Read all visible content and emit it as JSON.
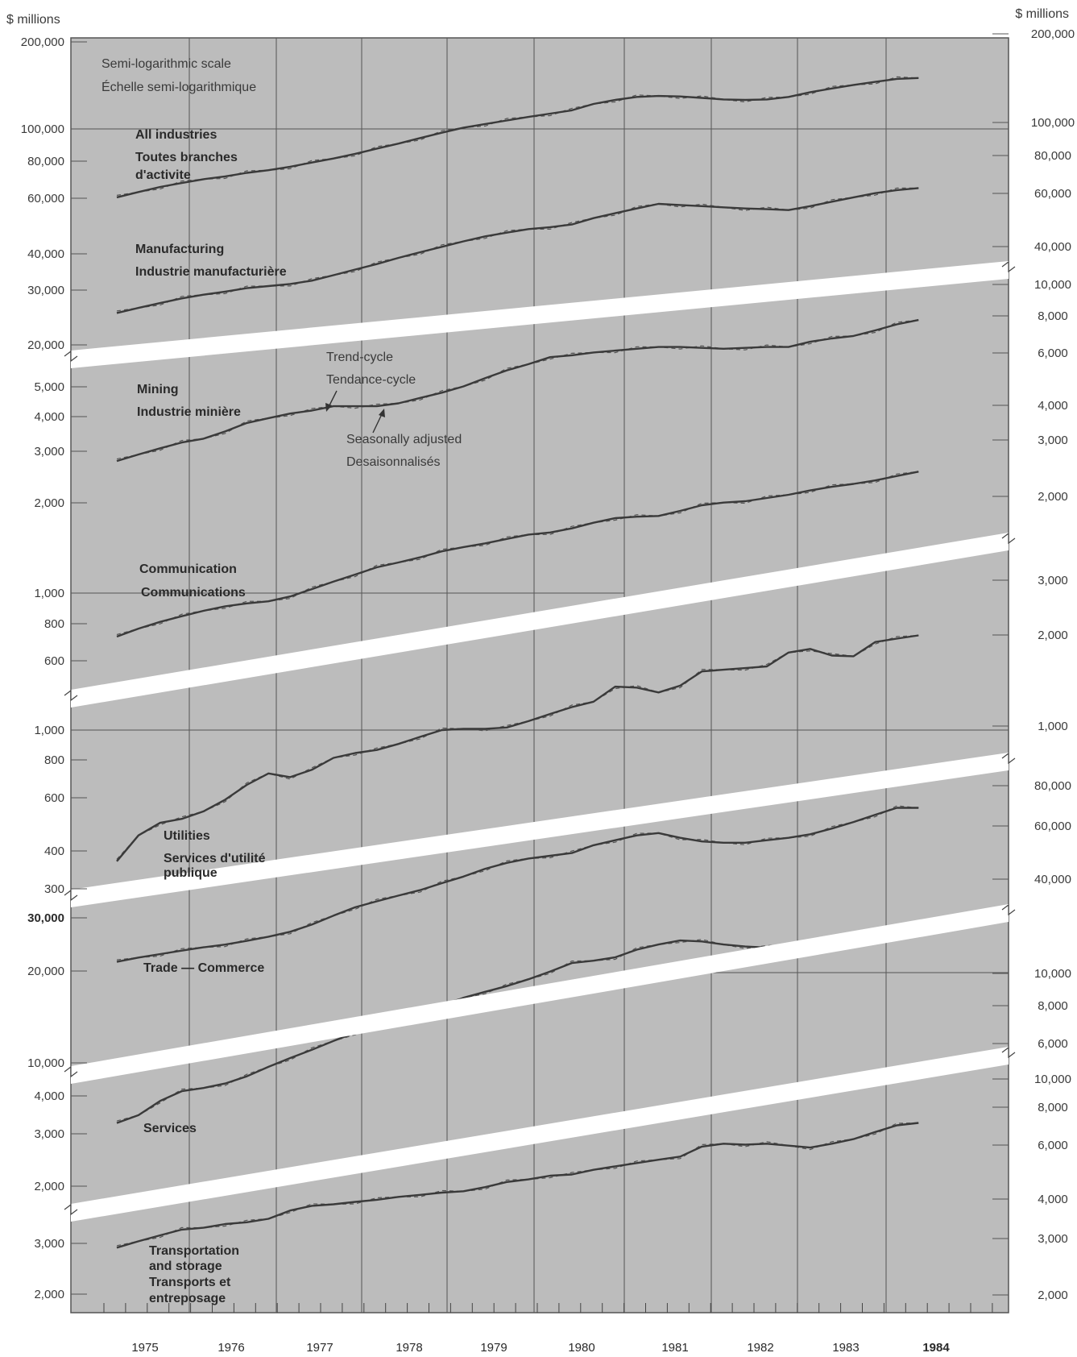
{
  "chart_data": {
    "type": "line",
    "units_left": "$ millions",
    "units_right": "$ millions",
    "scale_note": [
      "Semi-logarithmic scale",
      "Échelle semi-logarithmique"
    ],
    "legend_note": {
      "trend": [
        "Trend-cycle",
        "Tendance-cycle"
      ],
      "seasonal": [
        "Seasonally adjusted",
        "Desaisonnalisés"
      ]
    },
    "x": [
      "1974Q4",
      "1975Q1",
      "1975Q2",
      "1975Q3",
      "1975Q4",
      "1976Q1",
      "1976Q2",
      "1976Q3",
      "1976Q4",
      "1977Q1",
      "1977Q2",
      "1977Q3",
      "1977Q4",
      "1978Q1",
      "1978Q2",
      "1978Q3",
      "1978Q4",
      "1979Q1",
      "1979Q2",
      "1979Q3",
      "1979Q4",
      "1980Q1",
      "1980Q2",
      "1980Q3",
      "1980Q4",
      "1981Q1",
      "1981Q2",
      "1981Q3",
      "1981Q4",
      "1982Q1",
      "1982Q2",
      "1982Q3",
      "1982Q4",
      "1983Q1",
      "1983Q2",
      "1983Q3",
      "1983Q4",
      "1984Q1"
    ],
    "years": [
      "1975",
      "1976",
      "1977",
      "1978",
      "1979",
      "1980",
      "1981",
      "1982",
      "1983",
      "1984"
    ],
    "bold_year": "1984",
    "series": [
      {
        "name": "All industries",
        "name_fr": [
          "Toutes branches",
          "d'activite"
        ],
        "values": [
          58000,
          60500,
          63000,
          65000,
          67000,
          68500,
          70500,
          72000,
          74000,
          76500,
          79000,
          82000,
          85500,
          89000,
          93000,
          97000,
          101000,
          104000,
          107000,
          110000,
          113000,
          116000,
          122000,
          126000,
          129000,
          130000,
          129500,
          128000,
          126500,
          126000,
          126500,
          129000,
          134000,
          138000,
          142000,
          145500,
          149000,
          150000
        ]
      },
      {
        "name": "Manufacturing",
        "name_fr": [
          "Industrie manufacturière"
        ],
        "values": [
          25500,
          26500,
          27500,
          28500,
          29300,
          30000,
          30800,
          31300,
          31800,
          32600,
          34000,
          35500,
          37000,
          38800,
          40500,
          42200,
          44000,
          45700,
          47000,
          48300,
          49000,
          50000,
          52500,
          54500,
          56500,
          58500,
          58000,
          57500,
          57000,
          56500,
          56200,
          55800,
          57500,
          59500,
          61500,
          63500,
          65000,
          66000
        ]
      },
      {
        "name": "Mining",
        "name_fr": [
          "Industrie minière"
        ],
        "values": [
          2800,
          2950,
          3100,
          3250,
          3350,
          3550,
          3800,
          3950,
          4100,
          4200,
          4350,
          4350,
          4350,
          4450,
          4650,
          4850,
          5100,
          5450,
          5800,
          6100,
          6450,
          6550,
          6700,
          6800,
          6900,
          7000,
          7000,
          6950,
          6900,
          6950,
          7000,
          7000,
          7300,
          7500,
          7650,
          8000,
          8400,
          8700
        ]
      },
      {
        "name": "Communication",
        "name_fr": [
          "Communications"
        ],
        "values": [
          720,
          765,
          805,
          840,
          875,
          905,
          925,
          940,
          975,
          1030,
          1090,
          1150,
          1215,
          1260,
          1310,
          1370,
          1415,
          1455,
          1505,
          1555,
          1580,
          1630,
          1700,
          1760,
          1780,
          1790,
          1860,
          1940,
          1980,
          2000,
          2050,
          2100,
          2170,
          2230,
          2280,
          2340,
          2420,
          2500
        ]
      },
      {
        "name": "Utilities",
        "name_fr": [
          "Services d'utilité",
          "publique"
        ],
        "values": [
          370,
          450,
          495,
          510,
          540,
          590,
          660,
          720,
          700,
          740,
          810,
          840,
          860,
          900,
          950,
          1000,
          1010,
          1010,
          1020,
          1070,
          1130,
          1190,
          1240,
          1390,
          1380,
          1330,
          1400,
          1560,
          1580,
          1600,
          1620,
          1800,
          1850,
          1760,
          1750,
          1950,
          2000,
          2050
        ]
      },
      {
        "name": "Trade — Commerce",
        "name_fr": [],
        "values": [
          21500,
          22200,
          22800,
          23400,
          24000,
          24500,
          25200,
          26000,
          27000,
          28500,
          30500,
          32500,
          34000,
          35500,
          37000,
          39000,
          41000,
          43500,
          45500,
          47000,
          48000,
          49000,
          52000,
          54000,
          56000,
          57000,
          55000,
          53500,
          53000,
          53000,
          54000,
          55000,
          56500,
          59000,
          62000,
          65500,
          69000,
          69000
        ]
      },
      {
        "name": "Services",
        "name_fr": [],
        "values": [
          3250,
          3450,
          3850,
          4150,
          4250,
          4400,
          4650,
          5000,
          5350,
          5700,
          6100,
          6500,
          6900,
          7300,
          7600,
          8000,
          8500,
          8900,
          9300,
          9800,
          10400,
          11100,
          11300,
          11600,
          12300,
          12800,
          13200,
          13100,
          12800,
          12600,
          12500,
          12700,
          13000,
          13500,
          13700,
          14000,
          14400,
          14500
        ]
      },
      {
        "name": "Transportation and storage",
        "name_fr": [
          "Transports et",
          "entreposage"
        ],
        "values": [
          2900,
          3050,
          3200,
          3350,
          3400,
          3500,
          3550,
          3650,
          3900,
          4050,
          4100,
          4180,
          4250,
          4350,
          4420,
          4500,
          4550,
          4700,
          4900,
          5000,
          5150,
          5200,
          5400,
          5550,
          5700,
          5850,
          6000,
          6500,
          6650,
          6600,
          6650,
          6550,
          6450,
          6650,
          6900,
          7300,
          7700,
          7850
        ]
      }
    ],
    "left_axis": [
      [
        "200,000",
        "100,000",
        "80,000",
        "60,000",
        "40,000",
        "30,000",
        "20,000"
      ],
      [
        "5,000",
        "4,000",
        "3,000",
        "2,000"
      ],
      [
        "1,000",
        "800",
        "600"
      ],
      [
        "1,000",
        "800",
        "600",
        "400",
        "300"
      ],
      [
        "30,000",
        "20,000",
        "10,000"
      ],
      [
        "4,000",
        "3,000",
        "2,000"
      ],
      [
        "3,000",
        "2,000"
      ]
    ],
    "right_axis": [
      [
        "200,000",
        "100,000",
        "80,000",
        "60,000",
        "40,000"
      ],
      [
        "10,000",
        "8,000",
        "6,000",
        "4,000",
        "3,000",
        "2,000"
      ],
      [
        "3,000",
        "2,000",
        "1,000"
      ],
      [
        "80,000",
        "60,000",
        "40,000"
      ],
      [
        "10,000",
        "8,000",
        "6,000"
      ],
      [
        "10,000",
        "8,000",
        "6,000",
        "4,000",
        "3,000",
        "2,000"
      ]
    ]
  }
}
